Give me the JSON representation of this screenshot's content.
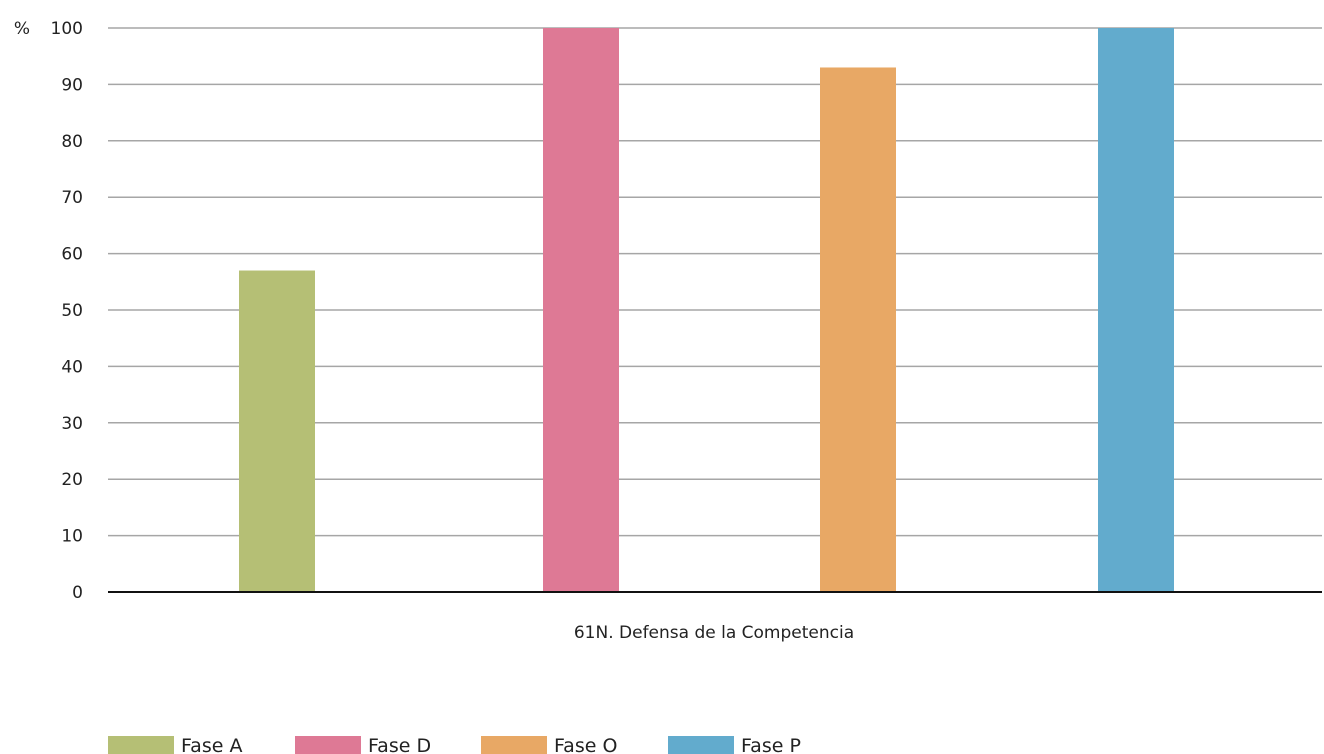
{
  "chart_data": {
    "type": "bar",
    "title": "",
    "ylabel": "%",
    "xlabel": "",
    "category": "61N. Defensa de la Competencia",
    "ylim": [
      0,
      100
    ],
    "yticks": [
      0,
      10,
      20,
      30,
      40,
      50,
      60,
      70,
      80,
      90,
      100
    ],
    "grid": true,
    "legend_position": "bottom-left",
    "series": [
      {
        "name": "Fase A",
        "value": 57,
        "color": "#b5bf75"
      },
      {
        "name": "Fase D",
        "value": 100,
        "color": "#de7995"
      },
      {
        "name": "Fase O",
        "value": 93,
        "color": "#e8a865"
      },
      {
        "name": "Fase P",
        "value": 100,
        "color": "#62abcd"
      }
    ]
  }
}
